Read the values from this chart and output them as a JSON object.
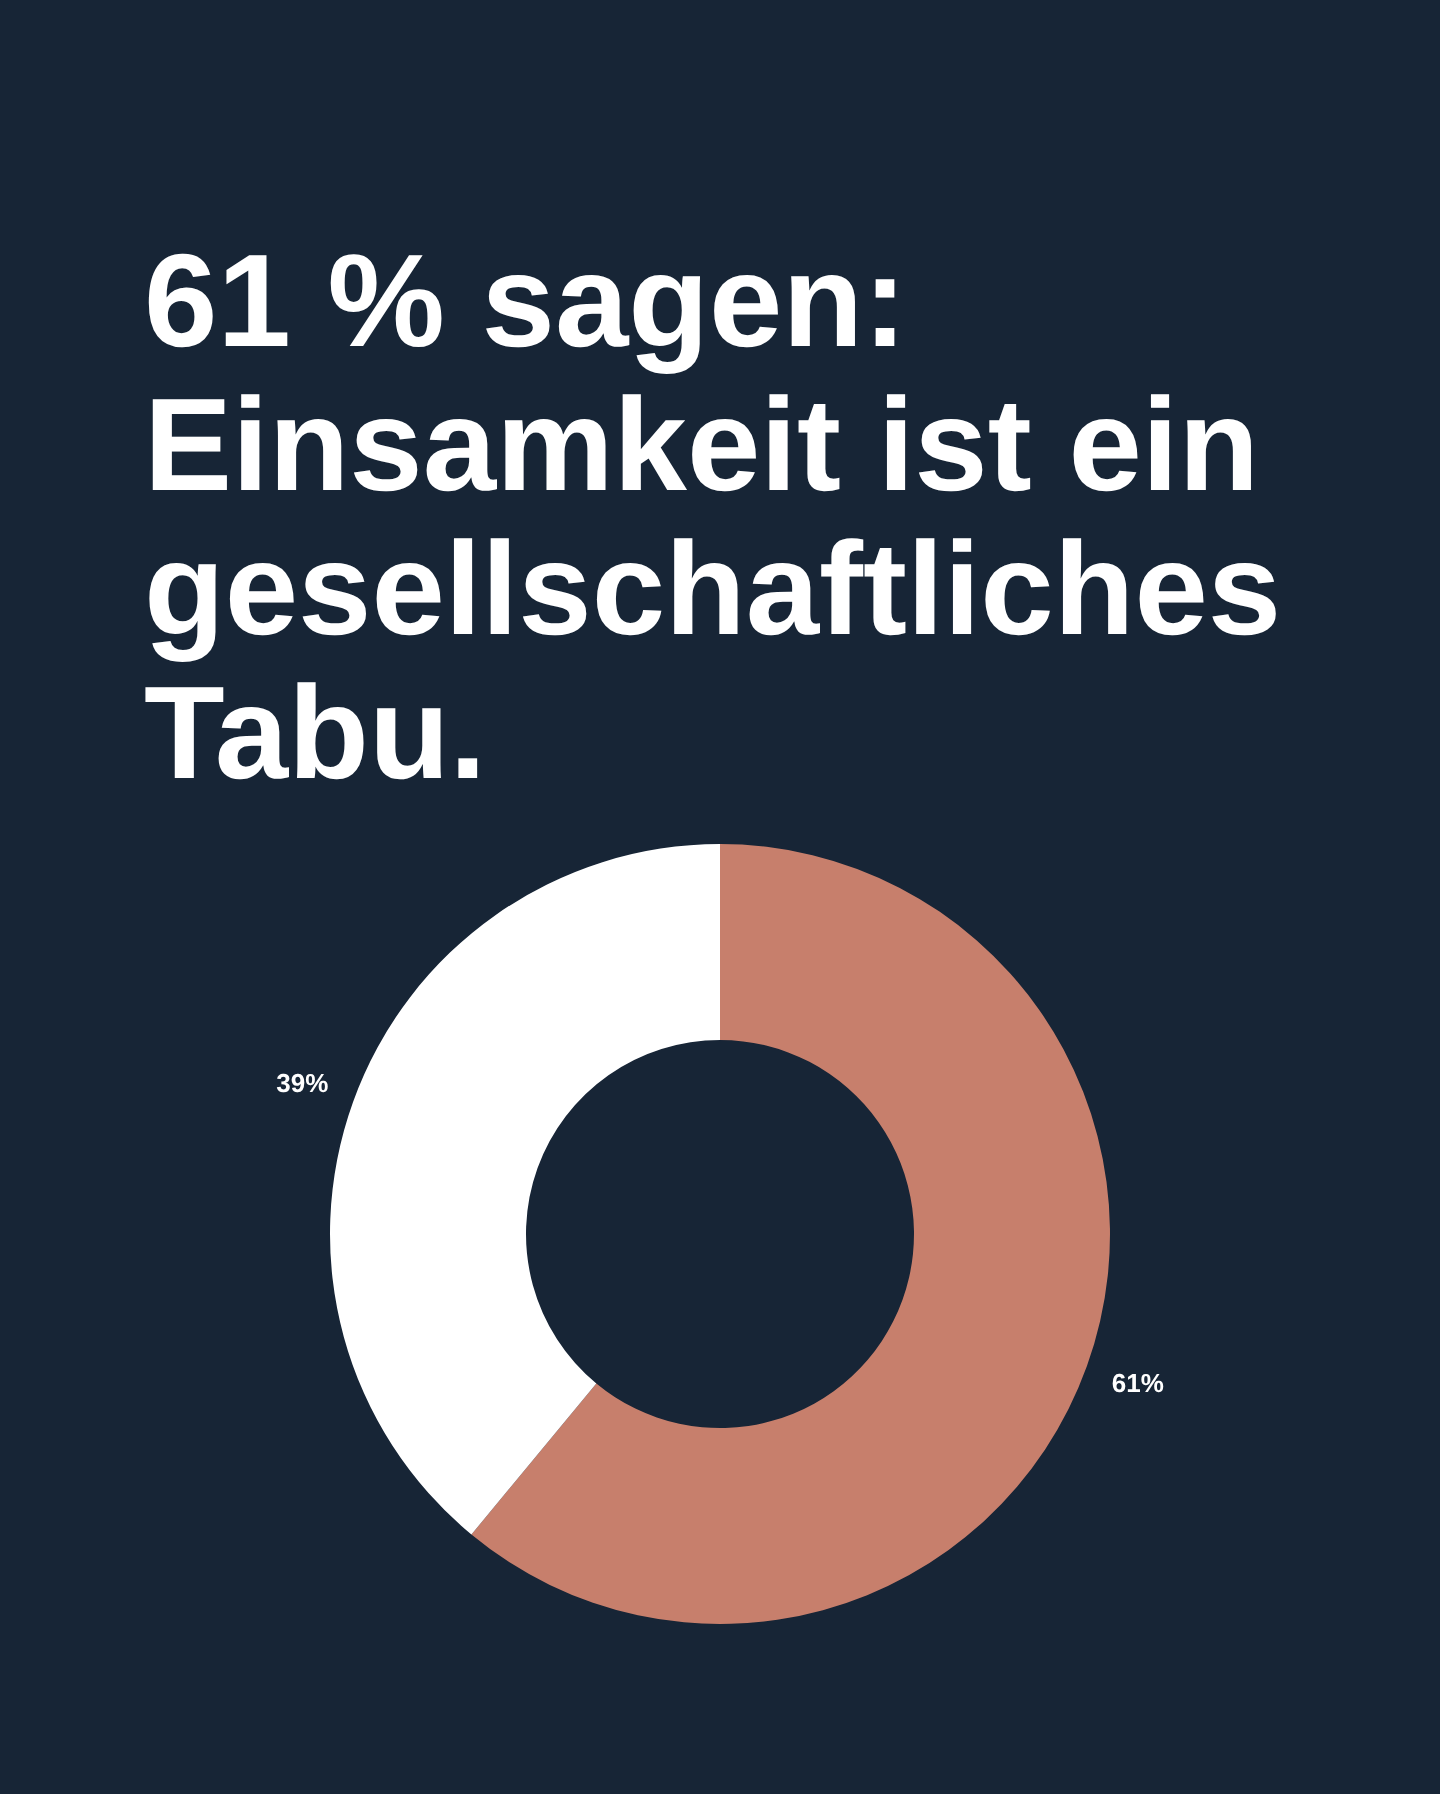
{
  "chart_data": {
    "type": "donut",
    "title": "61 % sagen: Einsamkeit ist ein gesellschaftliches Tabu.",
    "categories": [
      null,
      null
    ],
    "values": [
      61,
      39
    ],
    "colors": [
      "#c77f6c",
      "#ffffff"
    ],
    "value_labels": [
      "61%",
      "39%"
    ]
  }
}
